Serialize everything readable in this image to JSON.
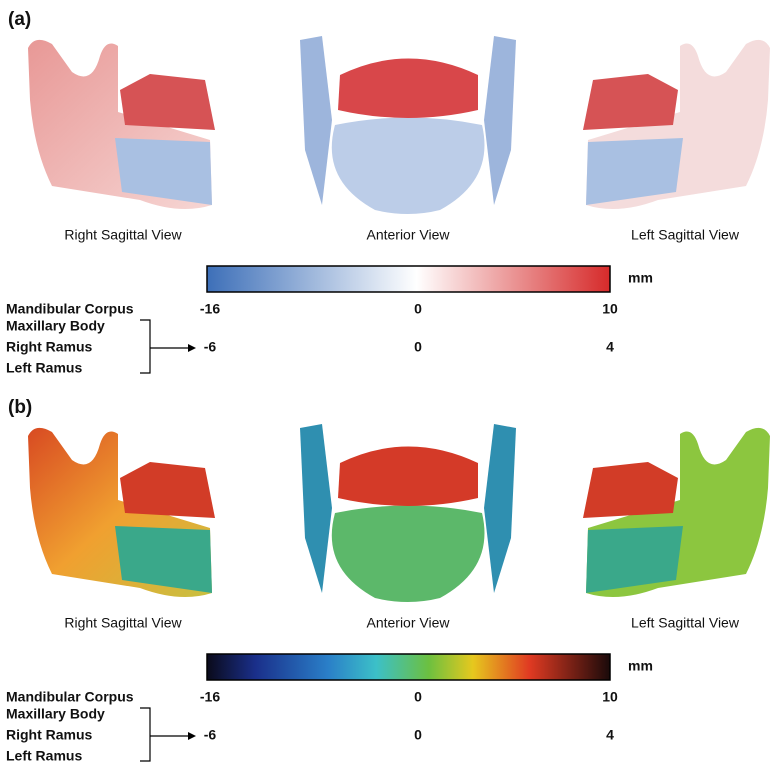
{
  "panels": [
    {
      "label": "(a)",
      "views": [
        "Right Sagittal View",
        "Anterior View",
        "Left Sagittal View"
      ],
      "unit": "mm",
      "scales": [
        {
          "regions": [
            "Mandibular Corpus"
          ],
          "ticks": [
            -16,
            0,
            10
          ]
        },
        {
          "regions": [
            "Maxillary Body",
            "Right Ramus",
            "Left Ramus"
          ],
          "ticks": [
            -6,
            0,
            4
          ]
        }
      ]
    },
    {
      "label": "(b)",
      "views": [
        "Right Sagittal View",
        "Anterior View",
        "Left Sagittal View"
      ],
      "unit": "mm",
      "scales": [
        {
          "regions": [
            "Mandibular Corpus"
          ],
          "ticks": [
            -16,
            0,
            10
          ]
        },
        {
          "regions": [
            "Maxillary Body",
            "Right Ramus",
            "Left Ramus"
          ],
          "ticks": [
            -6,
            0,
            4
          ]
        }
      ]
    }
  ]
}
